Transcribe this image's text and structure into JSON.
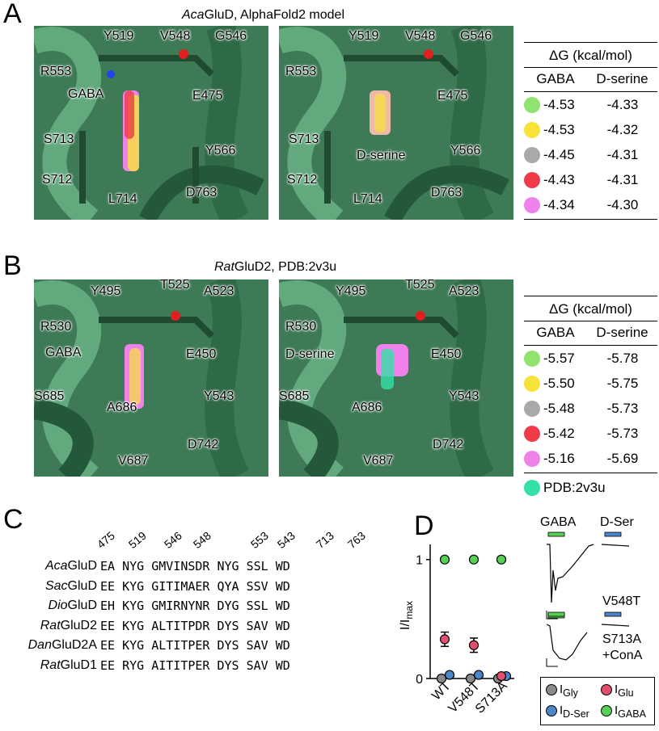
{
  "panelA": {
    "label": "A",
    "title_italic": "Aca",
    "title_rest": "GluD, AlphaFold2 model",
    "left_residues": [
      "Y519",
      "V548",
      "G546",
      "R553",
      "GABA",
      "E475",
      "S713",
      "Y566",
      "S712",
      "L714",
      "D763"
    ],
    "right_residues": [
      "Y519",
      "V548",
      "G546",
      "R553",
      "E475",
      "S713",
      "D-serine",
      "Y566",
      "S712",
      "L714",
      "D763"
    ],
    "table": {
      "header": "ΔG (kcal/mol)",
      "col1": "GABA",
      "col2": "D-serine",
      "rows": [
        {
          "color": "#8fe36e",
          "gaba": "-4.53",
          "dser": "-4.33"
        },
        {
          "color": "#f7e23a",
          "gaba": "-4.53",
          "dser": "-4.32"
        },
        {
          "color": "#a8aaa8",
          "gaba": "-4.45",
          "dser": "-4.31"
        },
        {
          "color": "#ee3b4a",
          "gaba": "-4.43",
          "dser": "-4.31"
        },
        {
          "color": "#ee82ea",
          "gaba": "-4.34",
          "dser": "-4.30"
        }
      ]
    }
  },
  "panelB": {
    "label": "B",
    "title_italic": "Rat",
    "title_rest": "GluD2, PDB:2v3u",
    "left_residues": [
      "Y495",
      "T525",
      "A523",
      "R530",
      "GABA",
      "E450",
      "S685",
      "A686",
      "Y543",
      "V687",
      "D742"
    ],
    "right_residues": [
      "Y495",
      "T525",
      "A523",
      "R530",
      "D-serine",
      "E450",
      "S685",
      "A686",
      "Y543",
      "V687",
      "D742"
    ],
    "table": {
      "header": "ΔG (kcal/mol)",
      "col1": "GABA",
      "col2": "D-serine",
      "rows": [
        {
          "color": "#8fe36e",
          "gaba": "-5.57",
          "dser": "-5.78"
        },
        {
          "color": "#f7e23a",
          "gaba": "-5.50",
          "dser": "-5.75"
        },
        {
          "color": "#a8aaa8",
          "gaba": "-5.48",
          "dser": "-5.73"
        },
        {
          "color": "#ee3b4a",
          "gaba": "-5.42",
          "dser": "-5.73"
        },
        {
          "color": "#ee82ea",
          "gaba": "-5.16",
          "dser": "-5.69"
        }
      ],
      "extra": {
        "color": "#33e0a8",
        "label": "PDB:2v3u"
      }
    }
  },
  "panelC": {
    "label": "C",
    "positions": [
      "475",
      "519",
      "546",
      "548",
      "553",
      "543",
      "713",
      "763"
    ],
    "rows": [
      {
        "italic": "Aca",
        "rest": "GluD",
        "seq": "EA NYG GMVINSDR NYG SSL WD"
      },
      {
        "italic": "Sac",
        "rest": "GluD",
        "seq": "EE KYG GITIMAER QYA SSV WD"
      },
      {
        "italic": "Dio",
        "rest": "GluD",
        "seq": "EH KYG GMIRNYNR DYG SSL WD"
      },
      {
        "italic": "Rat",
        "rest": "GluD2",
        "seq": "EE KYG ALTITPDR DYS SAV WD"
      },
      {
        "italic": "Dan",
        "rest": "GluD2A",
        "seq": "EE KYG ALTITPER DYS SAV WD"
      },
      {
        "italic": "Rat",
        "rest": "GluD1",
        "seq": "EE RYG AITITPER DYS SAV WD"
      }
    ]
  },
  "panelD": {
    "label": "D",
    "ylabel_main": "I/I",
    "ylabel_sub": "max",
    "yticks": [
      "0",
      "1"
    ],
    "xcats": [
      "WT",
      "V548T",
      "S713A"
    ],
    "chart_data": {
      "type": "scatter",
      "categories": [
        "WT",
        "V548T",
        "S713A"
      ],
      "ylim": [
        0,
        1.1
      ],
      "series": [
        {
          "name": "Gly",
          "color": "#8a8a8a",
          "values": [
            0.0,
            0.0,
            0.0
          ]
        },
        {
          "name": "D-Ser",
          "color": "#4a86c8",
          "values": [
            0.03,
            0.03,
            0.02
          ]
        },
        {
          "name": "Glu",
          "color": "#e04f6e",
          "values": [
            0.33,
            0.28,
            0.02
          ]
        },
        {
          "name": "GABA",
          "color": "#55d255",
          "values": [
            1.0,
            1.0,
            1.0
          ]
        }
      ],
      "errors": {
        "Glu": [
          0.06,
          0.06,
          0.0
        ]
      }
    },
    "trace_labels": {
      "gaba": "GABA",
      "dser": "D-Ser",
      "v548t": "V548T",
      "s713a_1": "S713A",
      "s713a_2": "+ConA"
    },
    "legend": [
      {
        "sym": "I",
        "sub": "Gly",
        "color": "#8a8a8a"
      },
      {
        "sym": "I",
        "sub": "Glu",
        "color": "#e04f6e"
      },
      {
        "sym": "I",
        "sub": "D-Ser",
        "color": "#4a86c8"
      },
      {
        "sym": "I",
        "sub": "GABA",
        "color": "#55d255"
      }
    ]
  }
}
